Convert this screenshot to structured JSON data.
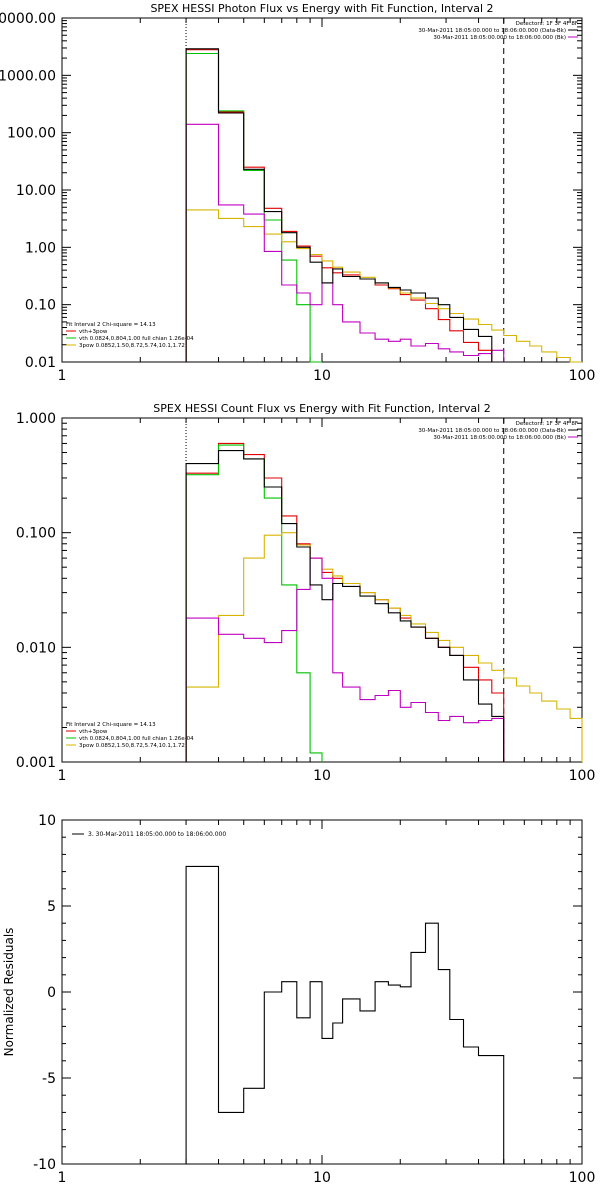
{
  "chart_data": [
    {
      "type": "line",
      "title": "SPEX HESSI Photon Flux vs Energy with Fit Function, Interval 2",
      "xlabel": "",
      "ylabel": "",
      "xscale": "log",
      "yscale": "log",
      "xlim": [
        1,
        100
      ],
      "ylim": [
        0.01,
        10000
      ],
      "x_ticks": [
        "1",
        "10",
        "100"
      ],
      "y_ticks": [
        "0.01",
        "0.10",
        "1.00",
        "10.00",
        "100.00",
        "1000.00",
        "10000.00"
      ],
      "vlines": [
        {
          "x": 3,
          "style": "dotted"
        },
        {
          "x": 50,
          "style": "dashed"
        }
      ],
      "legend_top_right": {
        "header": "Detectors: 1F 3F 4F 8F",
        "entries": [
          {
            "label": "30-Mar-2011 18:05:00.000 to 18:06:00.000 (Data-Bk)",
            "color": "#000000"
          },
          {
            "label": "30-Mar-2011 18:05:00.000 to 18:06:00.000 (Bk)",
            "color": "#c000c0"
          }
        ]
      },
      "legend_bottom_left": {
        "header": "Fit Interval 2   Chi-square = 14.13",
        "entries": [
          {
            "label": "vth+3pow",
            "color": "#e00000"
          },
          {
            "label": "vth 0.0824,0.804,1.00  full chian 1.26e-04",
            "color": "#00c000"
          },
          {
            "label": "3pow 0.0852,1.50,8.72,5.74,10.1,1.72",
            "color": "#d8b400"
          }
        ]
      },
      "edges": [
        3,
        4,
        5,
        6,
        7,
        8,
        9,
        10,
        11,
        12,
        14,
        16,
        18,
        20,
        22,
        25,
        28,
        31,
        35,
        40,
        45,
        50,
        56,
        63,
        70,
        80,
        90,
        100
      ],
      "series": [
        {
          "color": "#e00000",
          "values": [
            2800,
            230,
            25,
            4.8,
            1.9,
            1.05,
            0.7,
            0.44,
            0.36,
            0.33,
            0.28,
            0.22,
            0.19,
            0.15,
            0.12,
            0.085,
            0.055,
            0.035,
            0.022,
            0.016,
            null,
            null,
            null,
            null,
            null,
            null,
            null
          ]
        },
        {
          "color": "#00c000",
          "values": [
            2400,
            240,
            22,
            3.0,
            0.6,
            0.1,
            0.005,
            null,
            null,
            null,
            null,
            null,
            null,
            null,
            null,
            null,
            null,
            null,
            null,
            null,
            null,
            null,
            null,
            null,
            null,
            null,
            null
          ]
        },
        {
          "color": "#d8b400",
          "values": [
            4.5,
            3.2,
            2.3,
            1.7,
            1.25,
            0.95,
            0.75,
            0.58,
            0.45,
            0.37,
            0.3,
            0.24,
            0.195,
            0.16,
            0.13,
            0.105,
            0.085,
            0.07,
            0.056,
            0.045,
            0.036,
            0.029,
            0.023,
            0.019,
            0.015,
            0.012,
            0.0098
          ]
        },
        {
          "color": "#c000c0",
          "values": [
            140,
            5.5,
            3.8,
            0.85,
            0.22,
            0.16,
            0.1,
            0.24,
            0.1,
            0.05,
            0.032,
            0.025,
            0.023,
            0.025,
            0.019,
            0.021,
            0.017,
            0.015,
            0.013,
            0.014,
            0.016,
            null,
            null,
            null,
            null,
            null,
            null
          ]
        },
        {
          "color": "#000000",
          "values": [
            2900,
            220,
            23,
            4.2,
            1.8,
            1.0,
            0.55,
            0.24,
            0.42,
            0.31,
            0.28,
            0.24,
            0.2,
            0.18,
            0.16,
            0.13,
            0.1,
            0.06,
            0.037,
            0.028,
            0.01,
            null,
            null,
            null,
            null,
            null,
            null
          ]
        }
      ]
    },
    {
      "type": "line",
      "title": "SPEX HESSI Count Flux vs Energy with Fit Function, Interval 2",
      "xlabel": "",
      "ylabel": "",
      "xscale": "log",
      "yscale": "log",
      "xlim": [
        1,
        100
      ],
      "ylim": [
        0.001,
        1
      ],
      "x_ticks": [
        "1",
        "10",
        "100"
      ],
      "y_ticks": [
        "0.001",
        "0.010",
        "0.100",
        "1.000"
      ],
      "vlines": [
        {
          "x": 3,
          "style": "dotted"
        },
        {
          "x": 50,
          "style": "dashed"
        }
      ],
      "legend_top_right": {
        "header": "Detectors: 1F 3F 4F 8F",
        "entries": [
          {
            "label": "30-Mar-2011 18:05:00.000 to 18:06:00.000 (Data-Bk)",
            "color": "#000000"
          },
          {
            "label": "30-Mar-2011 18:05:00.000 to 18:06:00.000 (Bk)",
            "color": "#c000c0"
          }
        ]
      },
      "legend_bottom_left": {
        "header": "Fit Interval 2   Chi-square = 14.13",
        "entries": [
          {
            "label": "vth+3pow",
            "color": "#e00000"
          },
          {
            "label": "vth 0.0824,0.804,1.00  full chian 1.26e-04",
            "color": "#00c000"
          },
          {
            "label": "3pow 0.0852,1.50,8.72,5.74,10.1,1.72",
            "color": "#d8b400"
          }
        ]
      },
      "edges": [
        3,
        4,
        5,
        6,
        7,
        8,
        9,
        10,
        11,
        12,
        14,
        16,
        18,
        20,
        22,
        25,
        28,
        31,
        35,
        40,
        45,
        50,
        56,
        63,
        70,
        80,
        90,
        100
      ],
      "series": [
        {
          "color": "#e00000",
          "values": [
            0.33,
            0.6,
            0.48,
            0.3,
            0.14,
            0.08,
            0.06,
            0.045,
            0.04,
            0.036,
            0.03,
            0.026,
            0.022,
            0.018,
            0.015,
            0.012,
            0.01,
            0.0085,
            0.0067,
            0.0052,
            0.004,
            null,
            null,
            null,
            null,
            null,
            null
          ]
        },
        {
          "color": "#00c000",
          "values": [
            0.32,
            0.58,
            0.44,
            0.2,
            0.035,
            0.006,
            0.0012,
            null,
            null,
            null,
            null,
            null,
            null,
            null,
            null,
            null,
            null,
            null,
            null,
            null,
            null,
            null,
            null,
            null,
            null,
            null,
            null
          ]
        },
        {
          "color": "#d8b400",
          "values": [
            0.0045,
            0.019,
            0.06,
            0.095,
            0.1,
            0.078,
            0.06,
            0.048,
            0.042,
            0.036,
            0.03,
            0.026,
            0.022,
            0.019,
            0.016,
            0.0135,
            0.0115,
            0.01,
            0.0085,
            0.0073,
            0.0063,
            0.0054,
            0.0046,
            0.004,
            0.0034,
            0.0029,
            0.0024
          ]
        },
        {
          "color": "#c000c0",
          "values": [
            0.018,
            0.013,
            0.012,
            0.011,
            0.014,
            0.032,
            0.06,
            0.04,
            0.006,
            0.0045,
            0.0035,
            0.0038,
            0.0042,
            0.003,
            0.0033,
            0.0027,
            0.0023,
            0.0025,
            0.0022,
            0.0023,
            0.0024,
            null,
            null,
            null,
            null,
            null,
            null
          ]
        },
        {
          "color": "#000000",
          "values": [
            0.4,
            0.52,
            0.44,
            0.25,
            0.12,
            0.075,
            0.035,
            0.026,
            0.036,
            0.034,
            0.028,
            0.024,
            0.02,
            0.017,
            0.015,
            0.012,
            0.01,
            0.0085,
            0.0052,
            0.0032,
            0.0025,
            null,
            null,
            null,
            null,
            null,
            null
          ]
        }
      ]
    },
    {
      "type": "line",
      "title": "",
      "xlabel": "",
      "ylabel": "Normalized Residuals",
      "xscale": "log",
      "yscale": "linear",
      "xlim": [
        1,
        100
      ],
      "ylim": [
        -10,
        10
      ],
      "x_ticks": [
        "1",
        "10",
        "100"
      ],
      "y_ticks": [
        "-10",
        "-5",
        "0",
        "5",
        "10"
      ],
      "legend": [
        {
          "label": "3. 30-Mar-2011 18:05:00.000 to 18:06:00.000",
          "color": "#000000"
        }
      ],
      "edges": [
        3,
        4,
        5,
        6,
        7,
        8,
        9,
        10,
        11,
        12,
        14,
        16,
        18,
        20,
        22,
        25,
        28,
        31,
        35,
        40,
        45,
        50
      ],
      "series": [
        {
          "color": "#000000",
          "values": [
            7.3,
            -7.0,
            -5.6,
            0.0,
            0.6,
            -1.5,
            0.6,
            -2.7,
            -1.8,
            -0.4,
            -1.1,
            0.6,
            0.4,
            0.3,
            2.3,
            4.0,
            1.3,
            -1.6,
            -3.2,
            -3.7,
            -3.7
          ]
        }
      ]
    }
  ]
}
